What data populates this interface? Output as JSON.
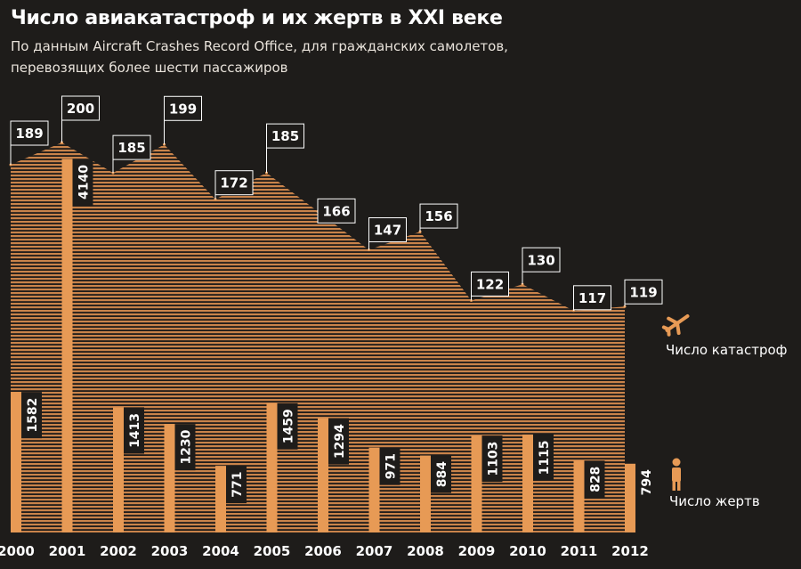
{
  "title": "Число авиакатастроф и их жертв в XXI веке",
  "subtitle": "По данным Aircraft Crashes Record Office, для гражданских самолетов, перевозящих более шести пассажиров",
  "colors": {
    "background": "#1e1c1a",
    "accent": "#e79a55",
    "area_stripe": "#c9834a",
    "label_bg": "#1e1c1a"
  },
  "legend": {
    "crashes_label": "Число катастроф",
    "crashes_icon": "airplane-icon",
    "victims_label": "Число жертв",
    "victims_icon": "person-icon"
  },
  "chart_data": {
    "type": "area+bar",
    "categories": [
      "2000",
      "2001",
      "2002",
      "2003",
      "2004",
      "2005",
      "2006",
      "2007",
      "2008",
      "2009",
      "2010",
      "2011",
      "2012"
    ],
    "series": [
      {
        "name": "Число катастроф",
        "type": "area",
        "values": [
          189,
          200,
          185,
          199,
          172,
          185,
          166,
          147,
          156,
          122,
          130,
          117,
          119
        ]
      },
      {
        "name": "Число жертв",
        "type": "bar",
        "values": [
          1582,
          4140,
          1413,
          1230,
          771,
          1459,
          1294,
          971,
          884,
          1103,
          1115,
          828,
          794
        ]
      }
    ],
    "title": "Число авиакатастроф и их жертв в XXI веке",
    "subtitle": "По данным Aircraft Crashes Record Office, для гражданских самолетов, перевозящих более шести пассажиров",
    "xlabel": "",
    "ylabel": "",
    "grid": false,
    "legend_position": "right"
  }
}
